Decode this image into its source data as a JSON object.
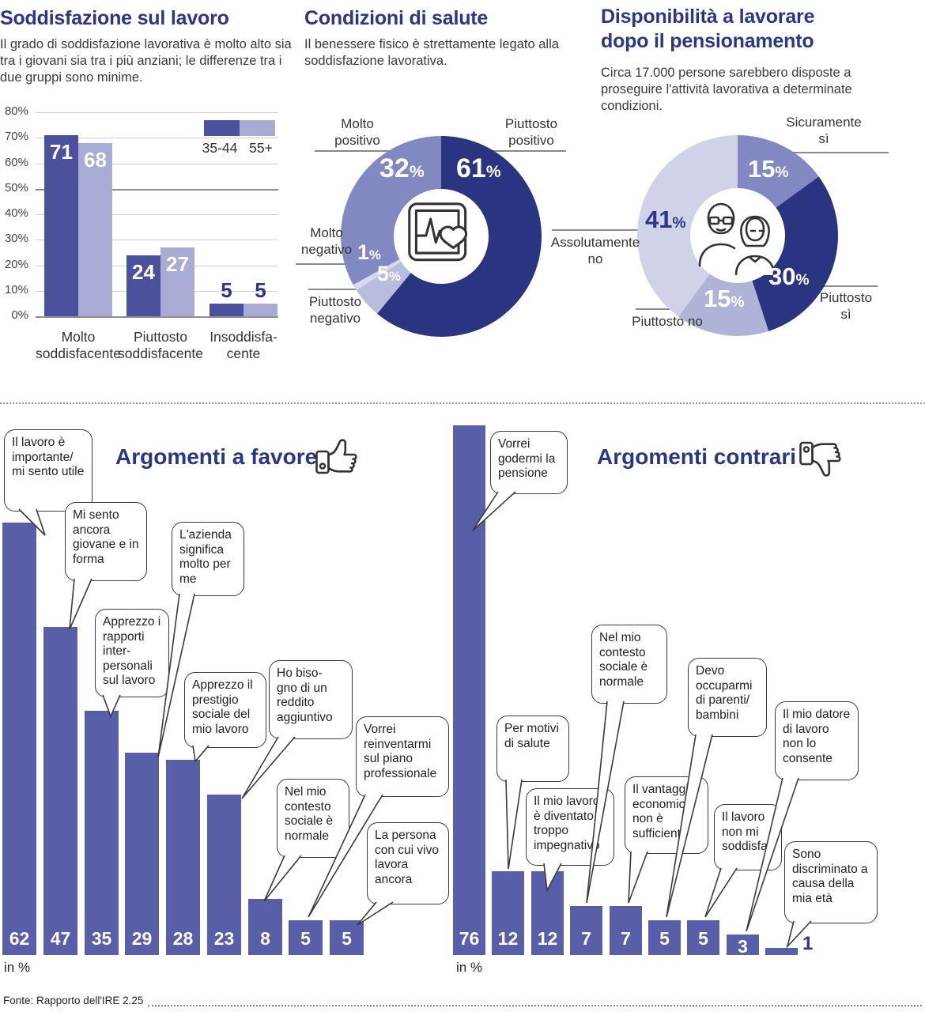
{
  "ui": {
    "percent_sign": "%",
    "in_percent": "in %"
  },
  "sections": {
    "satisfaction": {
      "description": "Il grado di soddisfazione lavorativa è molto alto sia tra i giovani sia tra i più anziani; le differenze tra i due gruppi sono minime."
    },
    "health": {
      "description": "Il benessere fisico è strettamente legato alla soddisfazione lavorativa."
    },
    "retirement": {
      "description": "Circa 17.000 persone sarebbero disposte a proseguire l'attività lavorativa a determinate condizioni."
    }
  },
  "footer": {
    "source": "Fonte: Rapporto dell'IRE 2.25"
  },
  "chart_data": [
    {
      "id": "satisfaction",
      "type": "bar",
      "title": "Soddisfazione sul lavoro",
      "categories": [
        "Molto soddisfacente",
        "Piuttosto soddisfacente",
        "Insoddisfa- cente"
      ],
      "series": [
        {
          "name": "35-44",
          "values": [
            71,
            24,
            5
          ],
          "color": "#4C519D"
        },
        {
          "name": "55+",
          "values": [
            68,
            27,
            5
          ],
          "color": "#A8ABD4"
        }
      ],
      "unit": "%",
      "ylim": [
        0,
        80
      ],
      "yticks": [
        "80%",
        "70%",
        "60%",
        "50%",
        "40%",
        "30%",
        "20%",
        "10%",
        "0%"
      ],
      "grid": true,
      "legend_position": "top-right"
    },
    {
      "id": "health",
      "type": "pie",
      "title": "Condizioni di salute",
      "order": "clockwise-from-top",
      "slices": [
        {
          "label": "Piuttosto positivo",
          "value": 61,
          "color": "#2A3480"
        },
        {
          "label": "Piuttosto negativo",
          "value": 5,
          "color": "#B9BDDD"
        },
        {
          "label": "Molto negativo",
          "value": 1,
          "color": "#D7D9EC"
        },
        {
          "label": "Molto positivo",
          "value": 32,
          "color": "#8288C2"
        }
      ],
      "center_icon": "heart-monitor-icon"
    },
    {
      "id": "willingness",
      "type": "pie",
      "title": "Disponibilità a lavorare dopo il pensionamento",
      "order": "clockwise-from-top",
      "slices": [
        {
          "label": "Sicuramente sì",
          "value": 15,
          "color": "#8288C2"
        },
        {
          "label": "Piuttosto sì",
          "value": 30,
          "color": "#2A3480"
        },
        {
          "label": "Piuttosto no",
          "value": 15,
          "color": "#AFB3D8"
        },
        {
          "label": "Assolutamente no",
          "value": 41,
          "color": "#CFD2E8"
        }
      ],
      "center_icon": "elderly-couple-icon"
    },
    {
      "id": "pro",
      "type": "bar",
      "title": "Argomenti a favore",
      "unit": "in %",
      "bar_color": "#585EA8",
      "labels": [
        "Il lavoro è importante/ mi sento utile",
        "Mi sento ancora giovane e in forma",
        "Apprezzo i rapporti inter- personali sul lavoro",
        "L'azienda significa molto per me",
        "Apprezzo il prestigio sociale del mio lavoro",
        "Ho biso- gno di un reddito aggiuntivo",
        "Nel mio contesto sociale è normale",
        "Vorrei reinventarmi sul piano professionale",
        "La persona con cui vivo lavora ancora"
      ],
      "values": [
        62,
        47,
        35,
        29,
        28,
        23,
        8,
        5,
        5
      ]
    },
    {
      "id": "contra",
      "type": "bar",
      "title": "Argomenti contrari",
      "unit": "in %",
      "bar_color": "#585EA8",
      "labels": [
        "Vorrei godermi la pensione",
        "Per motivi di salute",
        "Il mio lavoro è diventato troppo impegnativo",
        "Nel mio contesto sociale è normale",
        "Il vantaggio economico non è sufficiente",
        "Devo occuparmi di parenti/ bambini",
        "Il lavoro non mi soddisfa",
        "Il mio datore di lavoro non lo consente",
        "Sono discriminato a causa della mia età"
      ],
      "values": [
        76,
        12,
        12,
        7,
        7,
        5,
        5,
        3,
        1
      ]
    }
  ]
}
